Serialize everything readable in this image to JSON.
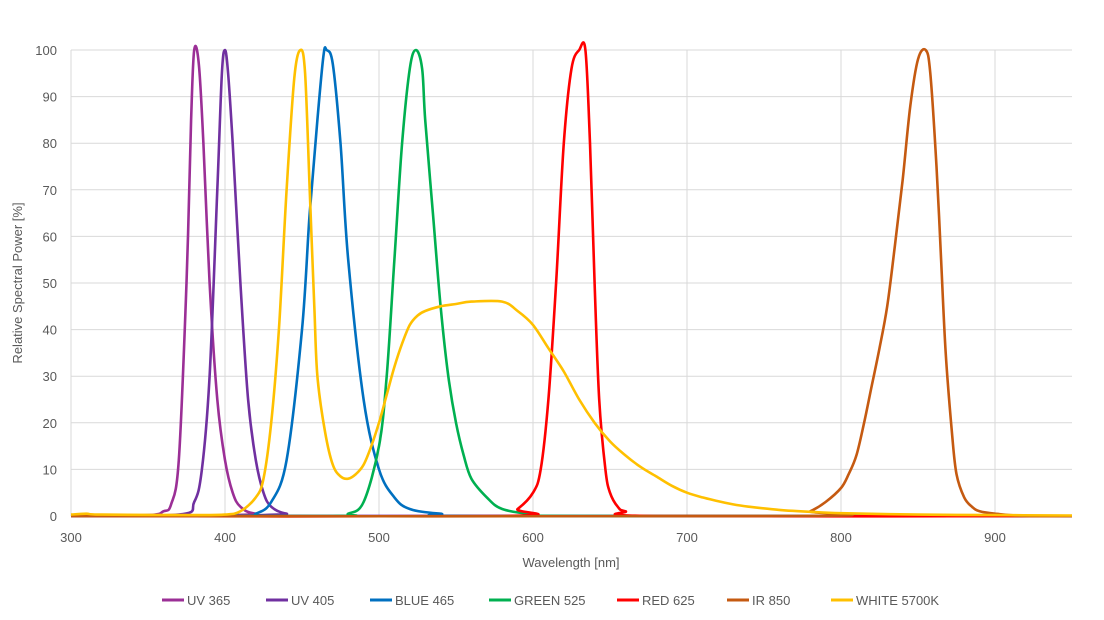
{
  "chart_data": {
    "type": "line",
    "title": "",
    "xlabel": "Wavelength [nm]",
    "ylabel": "Relative Spectral Power [%]",
    "xlim": [
      300,
      950
    ],
    "ylim": [
      0,
      100
    ],
    "xticks": [
      300,
      400,
      500,
      600,
      700,
      800,
      900
    ],
    "yticks": [
      0,
      10,
      20,
      30,
      40,
      50,
      60,
      70,
      80,
      90,
      100
    ],
    "grid": true,
    "legend_position": "bottom",
    "series": [
      {
        "name": "UV 365",
        "color": "#9B2F96",
        "points": [
          [
            300,
            0
          ],
          [
            350,
            0.2
          ],
          [
            360,
            1
          ],
          [
            365,
            2.5
          ],
          [
            370,
            12
          ],
          [
            375,
            50
          ],
          [
            378,
            85
          ],
          [
            380,
            100
          ],
          [
            383,
            97
          ],
          [
            386,
            80
          ],
          [
            390,
            50
          ],
          [
            395,
            25
          ],
          [
            400,
            12
          ],
          [
            405,
            5
          ],
          [
            410,
            2
          ],
          [
            420,
            0.5
          ],
          [
            450,
            0
          ],
          [
            950,
            0
          ]
        ]
      },
      {
        "name": "UV 405",
        "color": "#7030A0",
        "points": [
          [
            300,
            0
          ],
          [
            370,
            0.3
          ],
          [
            380,
            3
          ],
          [
            385,
            10
          ],
          [
            390,
            30
          ],
          [
            395,
            70
          ],
          [
            398,
            95
          ],
          [
            400,
            100
          ],
          [
            402,
            95
          ],
          [
            405,
            80
          ],
          [
            410,
            50
          ],
          [
            415,
            25
          ],
          [
            420,
            12
          ],
          [
            425,
            5
          ],
          [
            430,
            2
          ],
          [
            440,
            0.5
          ],
          [
            460,
            0
          ],
          [
            950,
            0
          ]
        ]
      },
      {
        "name": "BLUE 465",
        "color": "#0070C0",
        "points": [
          [
            300,
            0
          ],
          [
            410,
            0
          ],
          [
            420,
            0.5
          ],
          [
            430,
            3
          ],
          [
            440,
            12
          ],
          [
            450,
            40
          ],
          [
            455,
            65
          ],
          [
            460,
            85
          ],
          [
            464,
            99
          ],
          [
            466,
            100
          ],
          [
            470,
            97
          ],
          [
            475,
            80
          ],
          [
            480,
            55
          ],
          [
            490,
            25
          ],
          [
            500,
            10
          ],
          [
            510,
            4
          ],
          [
            520,
            1.5
          ],
          [
            540,
            0.5
          ],
          [
            570,
            0
          ],
          [
            950,
            0
          ]
        ]
      },
      {
        "name": "GREEN 525",
        "color": "#00B050",
        "points": [
          [
            300,
            0
          ],
          [
            470,
            0
          ],
          [
            480,
            0.5
          ],
          [
            490,
            3
          ],
          [
            500,
            15
          ],
          [
            505,
            30
          ],
          [
            510,
            55
          ],
          [
            515,
            80
          ],
          [
            520,
            96
          ],
          [
            524,
            100
          ],
          [
            528,
            96
          ],
          [
            530,
            85
          ],
          [
            535,
            65
          ],
          [
            540,
            45
          ],
          [
            545,
            30
          ],
          [
            550,
            20
          ],
          [
            555,
            13
          ],
          [
            560,
            8
          ],
          [
            570,
            4
          ],
          [
            580,
            1.5
          ],
          [
            600,
            0.4
          ],
          [
            630,
            0
          ],
          [
            950,
            0
          ]
        ]
      },
      {
        "name": "RED 625",
        "color": "#FF0000",
        "points": [
          [
            300,
            0
          ],
          [
            580,
            0
          ],
          [
            590,
            1.5
          ],
          [
            600,
            5
          ],
          [
            605,
            10
          ],
          [
            610,
            25
          ],
          [
            615,
            50
          ],
          [
            620,
            80
          ],
          [
            625,
            96
          ],
          [
            630,
            100
          ],
          [
            634,
            100
          ],
          [
            637,
            80
          ],
          [
            640,
            50
          ],
          [
            643,
            25
          ],
          [
            647,
            10
          ],
          [
            650,
            5
          ],
          [
            655,
            2
          ],
          [
            660,
            1
          ],
          [
            680,
            0
          ],
          [
            950,
            0
          ]
        ]
      },
      {
        "name": "IR 850",
        "color": "#C55A11",
        "points": [
          [
            300,
            0
          ],
          [
            770,
            0
          ],
          [
            780,
            1
          ],
          [
            790,
            3
          ],
          [
            800,
            6
          ],
          [
            805,
            9
          ],
          [
            810,
            13
          ],
          [
            815,
            20
          ],
          [
            820,
            28
          ],
          [
            825,
            36
          ],
          [
            830,
            45
          ],
          [
            835,
            58
          ],
          [
            840,
            72
          ],
          [
            845,
            88
          ],
          [
            850,
            98
          ],
          [
            855,
            100
          ],
          [
            858,
            95
          ],
          [
            862,
            75
          ],
          [
            865,
            55
          ],
          [
            868,
            35
          ],
          [
            872,
            18
          ],
          [
            875,
            9
          ],
          [
            880,
            4
          ],
          [
            885,
            2
          ],
          [
            890,
            1
          ],
          [
            900,
            0.5
          ],
          [
            920,
            0
          ],
          [
            950,
            0
          ]
        ]
      },
      {
        "name": "WHITE 5700K",
        "color": "#FFC000",
        "points": [
          [
            300,
            0.3
          ],
          [
            310,
            0.5
          ],
          [
            320,
            0.3
          ],
          [
            380,
            0.2
          ],
          [
            400,
            0.3
          ],
          [
            410,
            1
          ],
          [
            420,
            4
          ],
          [
            425,
            8
          ],
          [
            430,
            20
          ],
          [
            435,
            40
          ],
          [
            440,
            70
          ],
          [
            445,
            94
          ],
          [
            449,
            100
          ],
          [
            452,
            95
          ],
          [
            455,
            70
          ],
          [
            458,
            45
          ],
          [
            460,
            30
          ],
          [
            465,
            18
          ],
          [
            470,
            11
          ],
          [
            475,
            8.5
          ],
          [
            480,
            8
          ],
          [
            485,
            9
          ],
          [
            490,
            11
          ],
          [
            495,
            15
          ],
          [
            500,
            20
          ],
          [
            505,
            26
          ],
          [
            510,
            32
          ],
          [
            515,
            37
          ],
          [
            520,
            41
          ],
          [
            525,
            43
          ],
          [
            530,
            44
          ],
          [
            540,
            45
          ],
          [
            550,
            45.5
          ],
          [
            560,
            46
          ],
          [
            580,
            46
          ],
          [
            590,
            44
          ],
          [
            600,
            41
          ],
          [
            610,
            36
          ],
          [
            620,
            31
          ],
          [
            630,
            25
          ],
          [
            640,
            20
          ],
          [
            650,
            16
          ],
          [
            660,
            13
          ],
          [
            670,
            10.5
          ],
          [
            680,
            8.5
          ],
          [
            690,
            6.5
          ],
          [
            700,
            5
          ],
          [
            710,
            4
          ],
          [
            720,
            3.2
          ],
          [
            730,
            2.5
          ],
          [
            740,
            2
          ],
          [
            760,
            1.3
          ],
          [
            780,
            0.9
          ],
          [
            800,
            0.6
          ],
          [
            850,
            0.3
          ],
          [
            900,
            0.2
          ],
          [
            950,
            0.1
          ]
        ]
      }
    ]
  }
}
